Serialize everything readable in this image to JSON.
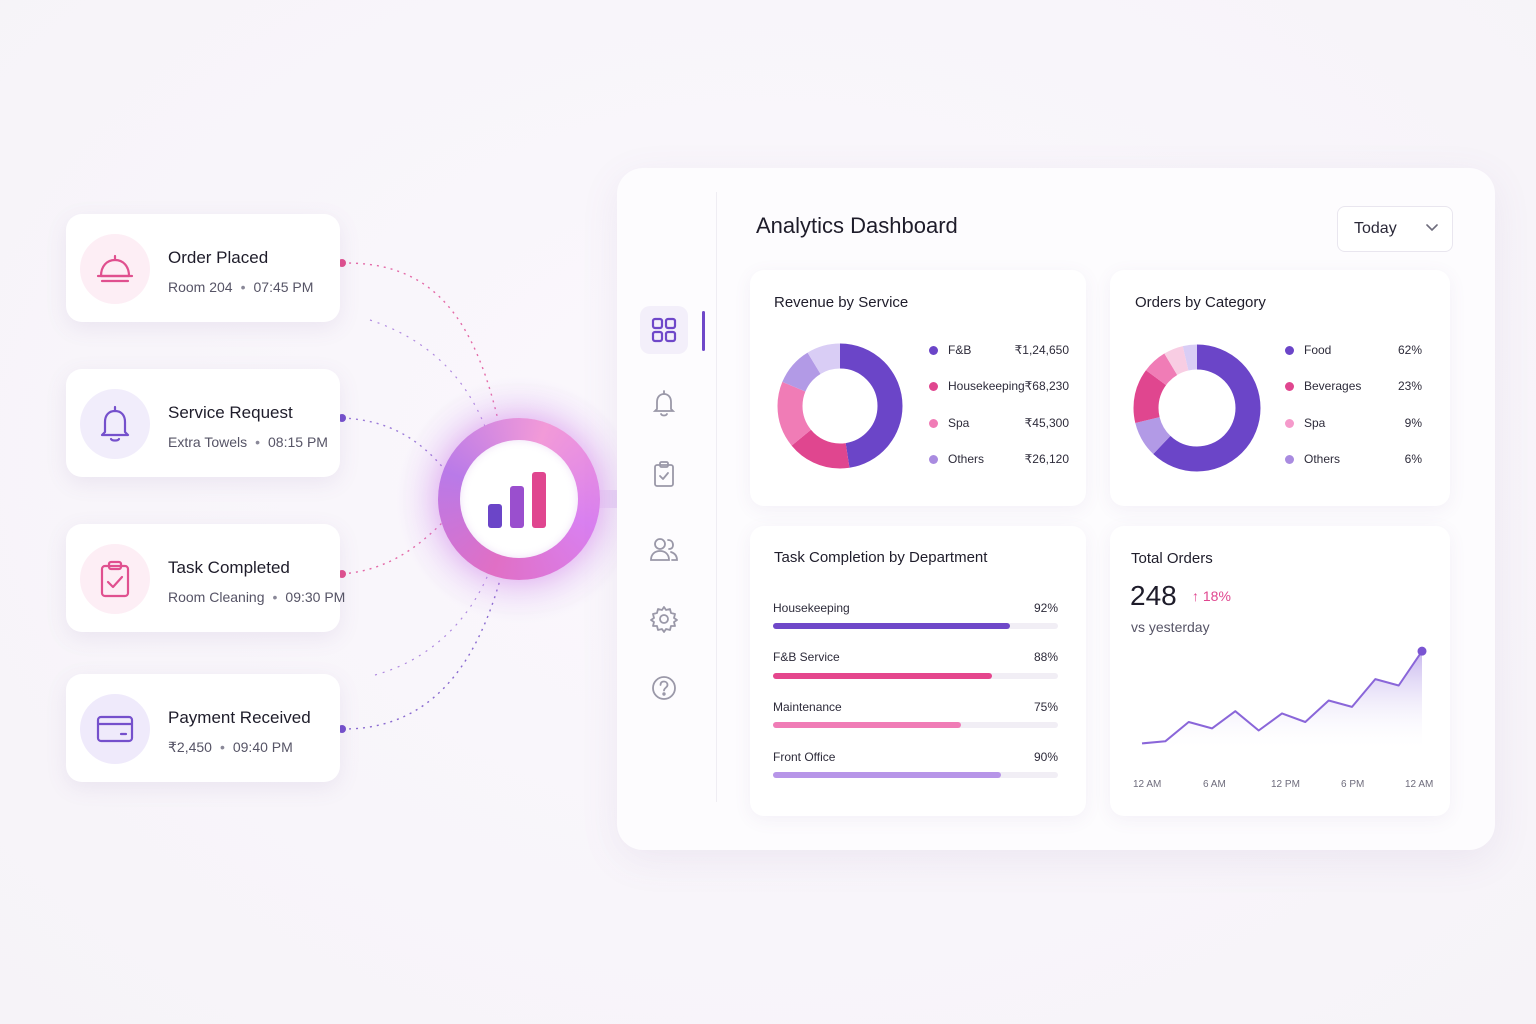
{
  "events": [
    {
      "title": "Order Placed",
      "detail": "Room 204",
      "time": "07:45 PM",
      "icon": "bell-service-icon",
      "color": "#e0508f"
    },
    {
      "title": "Service Request",
      "detail": "Extra Towels",
      "time": "08:15 PM",
      "icon": "bell-icon",
      "color": "#7550cc"
    },
    {
      "title": "Task Completed",
      "detail": "Room Cleaning",
      "time": "09:30 PM",
      "icon": "clipboard-check-icon",
      "color": "#e0508f"
    },
    {
      "title": "Payment Received",
      "detail": "₹2,450",
      "time": "09:40 PM",
      "icon": "credit-card-icon",
      "color": "#7550cc"
    }
  ],
  "separator": "•",
  "hub": {
    "icon": "bar-chart-icon"
  },
  "sidebar": {
    "items": [
      {
        "icon": "grid-icon",
        "active": true
      },
      {
        "icon": "bell-icon",
        "active": false
      },
      {
        "icon": "clipboard-icon",
        "active": false
      },
      {
        "icon": "users-icon",
        "active": false
      },
      {
        "icon": "gear-icon",
        "active": false
      },
      {
        "icon": "help-icon",
        "active": false
      }
    ]
  },
  "header": {
    "title": "Analytics Dashboard",
    "range": "Today"
  },
  "revenue": {
    "title": "Revenue by Service",
    "items": [
      {
        "label": "F&B",
        "value": "₹1,24,650",
        "color": "#6b45c8"
      },
      {
        "label": "Housekeeping",
        "value": "₹68,230",
        "color": "#e0468f"
      },
      {
        "label": "Spa",
        "value": "₹45,300",
        "color": "#f07cb6"
      },
      {
        "label": "Others",
        "value": "₹26,120",
        "color": "#a98be0"
      }
    ]
  },
  "orders_category": {
    "title": "Orders by Category",
    "items": [
      {
        "label": "Food",
        "value": "62%",
        "color": "#6b45c8"
      },
      {
        "label": "Beverages",
        "value": "23%",
        "color": "#e0468f"
      },
      {
        "label": "Spa",
        "value": "9%",
        "color": "#f59acb"
      },
      {
        "label": "Others",
        "value": "6%",
        "color": "#a98be0"
      }
    ]
  },
  "tasks": {
    "title": "Task Completion by Department",
    "items": [
      {
        "label": "Housekeeping",
        "value": "92%",
        "pct": 0.83,
        "color": "#6f48c9"
      },
      {
        "label": "F&B Service",
        "value": "88%",
        "pct": 0.77,
        "color": "#e5468d"
      },
      {
        "label": "Maintenance",
        "value": "75%",
        "pct": 0.66,
        "color": "#f07cb6"
      },
      {
        "label": "Front Office",
        "value": "90%",
        "pct": 0.8,
        "color": "#b795e8"
      }
    ]
  },
  "total_orders": {
    "title": "Total Orders",
    "value": "248",
    "change": "18%",
    "change_arrow": "↑",
    "subtitle": "vs yesterday",
    "accent": "#e0468f"
  },
  "chart_data": {
    "type": "area",
    "x_ticks": [
      "12 AM",
      "6 AM",
      "12 PM",
      "6 PM",
      "12 AM"
    ],
    "values": [
      4,
      5,
      14,
      11,
      19,
      10,
      18,
      14,
      24,
      21,
      34,
      31,
      47
    ],
    "ylim": [
      0,
      55
    ],
    "line_color": "#8a66d9"
  }
}
